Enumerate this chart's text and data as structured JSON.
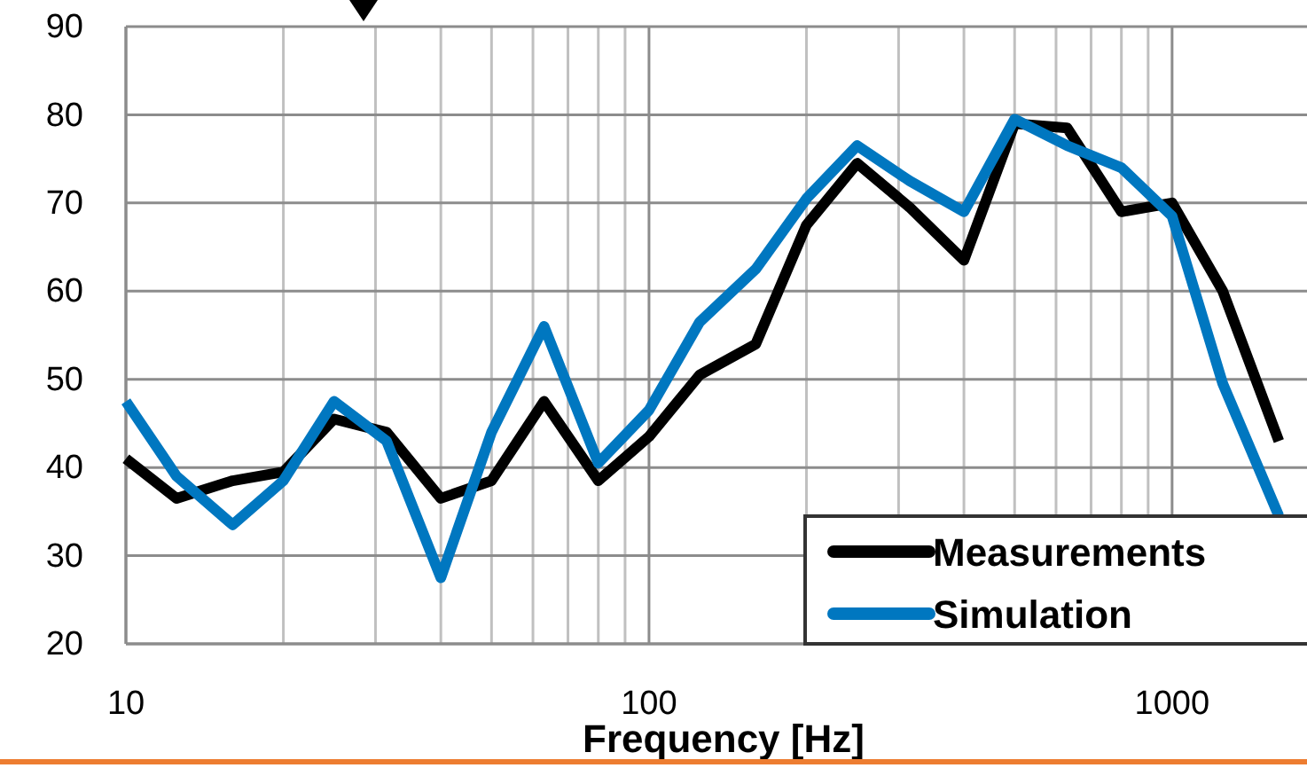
{
  "chart_data": {
    "type": "line",
    "xlabel": "Frequency [Hz]",
    "log": "x",
    "grid": true,
    "legend": "bottom right",
    "line_style": "solid",
    "marker": "none",
    "x": [
      10,
      12.5,
      16,
      20,
      25,
      31.5,
      40,
      50,
      63,
      80,
      100,
      125,
      160,
      200,
      250,
      315,
      400,
      500,
      630,
      800,
      1000,
      1250,
      1600
    ],
    "xlim": [
      10,
      1811
    ],
    "xticks": [
      10,
      {
        "value": 20,
        "label": null
      },
      {
        "value": 30,
        "label": null
      },
      {
        "value": 40,
        "label": null
      },
      {
        "value": 50,
        "label": null
      },
      {
        "value": 60,
        "label": null
      },
      {
        "value": 70,
        "label": null
      },
      {
        "value": 80,
        "label": null
      },
      {
        "value": 90,
        "label": null
      },
      100,
      {
        "value": 200,
        "label": null
      },
      {
        "value": 300,
        "label": null
      },
      {
        "value": 400,
        "label": null
      },
      {
        "value": 500,
        "label": null
      },
      {
        "value": 600,
        "label": null
      },
      {
        "value": 700,
        "label": null
      },
      {
        "value": 800,
        "label": null
      },
      {
        "value": 900,
        "label": null
      },
      1000
    ],
    "ylim": [
      20,
      90
    ],
    "yticks": [
      20,
      30,
      40,
      50,
      60,
      70,
      80,
      90
    ],
    "series": [
      {
        "name": "Measurements",
        "color": "#000000",
        "values": [
          41,
          36.5,
          38.5,
          39.5,
          45.5,
          44,
          36.5,
          38.5,
          47.5,
          38.5,
          43.5,
          50.5,
          54,
          67.5,
          74.5,
          69.5,
          63.5,
          79,
          78.5,
          69,
          70,
          60,
          43
        ]
      },
      {
        "name": "Simulation",
        "color": "#0077c0",
        "values": [
          47.5,
          39,
          33.5,
          38.5,
          47.5,
          43,
          27.5,
          44,
          56,
          40.5,
          46.5,
          56.5,
          62.5,
          70.5,
          76.5,
          72.5,
          69,
          79.5,
          76.5,
          74,
          68.5,
          49.5,
          34.5
        ]
      }
    ]
  }
}
